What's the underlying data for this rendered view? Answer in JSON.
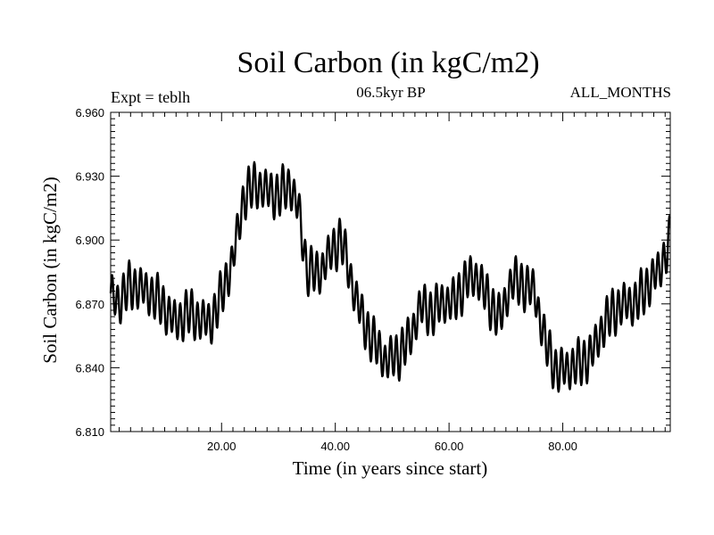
{
  "header": {
    "title": "Soil Carbon (in kgC/m2)",
    "expt": "Expt = teblh",
    "subtitle": "06.5kyr BP",
    "months": "ALL_MONTHS"
  },
  "chart_data": {
    "type": "line",
    "title": "Soil Carbon (in kgC/m2)",
    "xlabel": "Time (in years since start)",
    "ylabel": "Soil Carbon (in kgC/m2)",
    "xlim": [
      0.5,
      98.9
    ],
    "ylim": [
      6.81,
      6.96
    ],
    "x_ticks": [
      20,
      40,
      60,
      80
    ],
    "x_tick_labels": [
      "20.00",
      "40.00",
      "60.00",
      "80.00"
    ],
    "y_ticks": [
      6.81,
      6.84,
      6.87,
      6.9,
      6.93,
      6.96
    ],
    "y_tick_labels": [
      "6.810",
      "6.840",
      "6.870",
      "6.900",
      "6.930",
      "6.960"
    ],
    "grid": false,
    "seasonal_amplitude": 0.019,
    "series": [
      {
        "name": "Soil Carbon",
        "sampling": "monthly",
        "annual_mean_anchors": {
          "x": [
            0.5,
            2,
            4,
            6,
            8,
            10,
            12,
            14,
            16,
            18,
            20,
            22,
            24,
            26,
            28,
            30,
            32,
            33.5,
            35,
            37,
            39,
            41,
            43,
            45,
            47,
            49,
            51,
            53,
            55,
            57,
            59,
            61,
            63,
            65,
            67,
            69,
            71,
            73,
            75,
            77,
            79,
            81,
            83,
            85,
            87,
            89,
            91,
            93,
            95,
            97,
            98.9
          ],
          "y": [
            6.874,
            6.871,
            6.879,
            6.877,
            6.874,
            6.868,
            6.861,
            6.866,
            6.863,
            6.861,
            6.874,
            6.891,
            6.921,
            6.926,
            6.923,
            6.921,
            6.926,
            6.915,
            6.886,
            6.884,
            6.893,
            6.901,
            6.879,
            6.861,
            6.851,
            6.843,
            6.846,
            6.853,
            6.869,
            6.866,
            6.871,
            6.871,
            6.881,
            6.883,
            6.871,
            6.863,
            6.881,
            6.879,
            6.876,
            6.851,
            6.838,
            6.84,
            6.842,
            6.846,
            6.859,
            6.867,
            6.87,
            6.871,
            6.879,
            6.886,
            6.9
          ]
        }
      }
    ]
  }
}
